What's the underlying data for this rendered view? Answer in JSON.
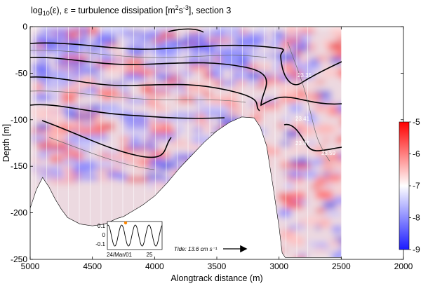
{
  "title": {
    "prefix": "log",
    "sub": "10",
    "mid": "(ε), ε = turbulence dissipation [m",
    "sup1": "2",
    "mid2": "s",
    "sup2": "-3",
    "suffix": "], section 3"
  },
  "chart_data": {
    "type": "heatmap",
    "xlabel": "Alongtrack distance (m)",
    "ylabel": "Depth [m]",
    "xlim": [
      5000,
      2000
    ],
    "ylim": [
      -250,
      0
    ],
    "x_ticks": [
      5000,
      4500,
      4000,
      3500,
      3000,
      2500,
      2000
    ],
    "y_ticks": [
      0,
      -50,
      -100,
      -150,
      -200,
      -250
    ],
    "colorbar": {
      "range": [
        -9,
        -5
      ],
      "ticks": [
        -5,
        -6,
        -7,
        -8,
        -9
      ],
      "colormap": [
        "#1a1aff",
        "#ffffff",
        "#ff0000"
      ]
    },
    "isopycnal_labels": [
      "23.35",
      "23.41",
      "23.47",
      "23.59"
    ],
    "bathymetry": [
      [
        5000,
        -195
      ],
      [
        4950,
        -175
      ],
      [
        4900,
        -162
      ],
      [
        4850,
        -172
      ],
      [
        4800,
        -185
      ],
      [
        4750,
        -196
      ],
      [
        4700,
        -205
      ],
      [
        4600,
        -212
      ],
      [
        4500,
        -214
      ],
      [
        4400,
        -212
      ],
      [
        4300,
        -206
      ],
      [
        4250,
        -204
      ],
      [
        4200,
        -200
      ],
      [
        4100,
        -192
      ],
      [
        4000,
        -182
      ],
      [
        3900,
        -168
      ],
      [
        3800,
        -152
      ],
      [
        3700,
        -138
      ],
      [
        3600,
        -124
      ],
      [
        3500,
        -112
      ],
      [
        3400,
        -103
      ],
      [
        3300,
        -97
      ],
      [
        3200,
        -98
      ],
      [
        3150,
        -108
      ],
      [
        3100,
        -128
      ],
      [
        3050,
        -170
      ],
      [
        3000,
        -215
      ],
      [
        2975,
        -243
      ],
      [
        2950,
        -248
      ],
      [
        2500,
        -248
      ]
    ],
    "inset": {
      "yticks": [
        0.1,
        0,
        -0.1
      ],
      "xticklabels": [
        "24/Mar/01",
        "25"
      ]
    },
    "tide_label": "Tide: 13.6 cm s⁻¹"
  }
}
